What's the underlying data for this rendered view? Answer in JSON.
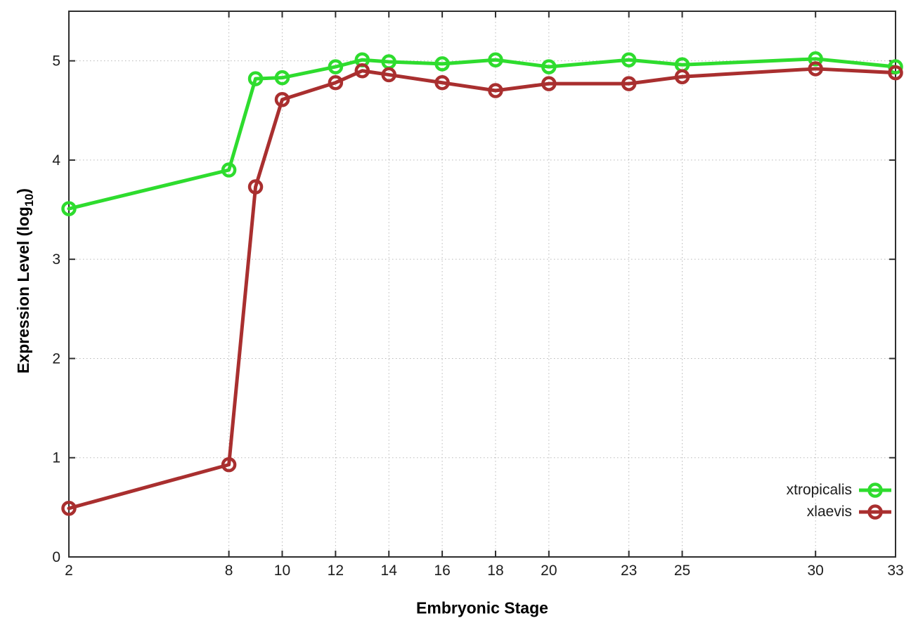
{
  "chart_data": {
    "type": "line",
    "title": "",
    "xlabel": "Embryonic Stage",
    "ylabel": "Expression Level (log10)",
    "ylabel_parts": {
      "main": "Expression Level (log",
      "sub": "10",
      "close": ")"
    },
    "x": [
      2,
      8,
      9,
      10,
      12,
      13,
      14,
      16,
      18,
      20,
      23,
      25,
      30,
      33
    ],
    "x_ticks": [
      2,
      8,
      10,
      12,
      14,
      16,
      18,
      20,
      23,
      25,
      30,
      33
    ],
    "y_ticks": [
      0,
      1,
      2,
      3,
      4,
      5
    ],
    "xlim": [
      2,
      33
    ],
    "ylim": [
      0,
      5.5
    ],
    "grid": true,
    "legend_position": "bottom-right-inside",
    "series": [
      {
        "name": "xtropicalis",
        "color": "#2edc2e",
        "values": [
          3.51,
          3.9,
          4.82,
          4.83,
          4.94,
          5.01,
          4.99,
          4.97,
          5.01,
          4.94,
          5.01,
          4.96,
          5.02,
          4.94
        ]
      },
      {
        "name": "xlaevis",
        "color": "#a92f2f",
        "values": [
          0.49,
          0.93,
          3.73,
          4.61,
          4.78,
          4.9,
          4.86,
          4.78,
          4.7,
          4.77,
          4.77,
          4.84,
          4.92,
          4.88
        ]
      }
    ],
    "style": {
      "grid_color": "#b8b8b8",
      "frame_color": "#2e2e2e",
      "background": "#ffffff"
    }
  }
}
